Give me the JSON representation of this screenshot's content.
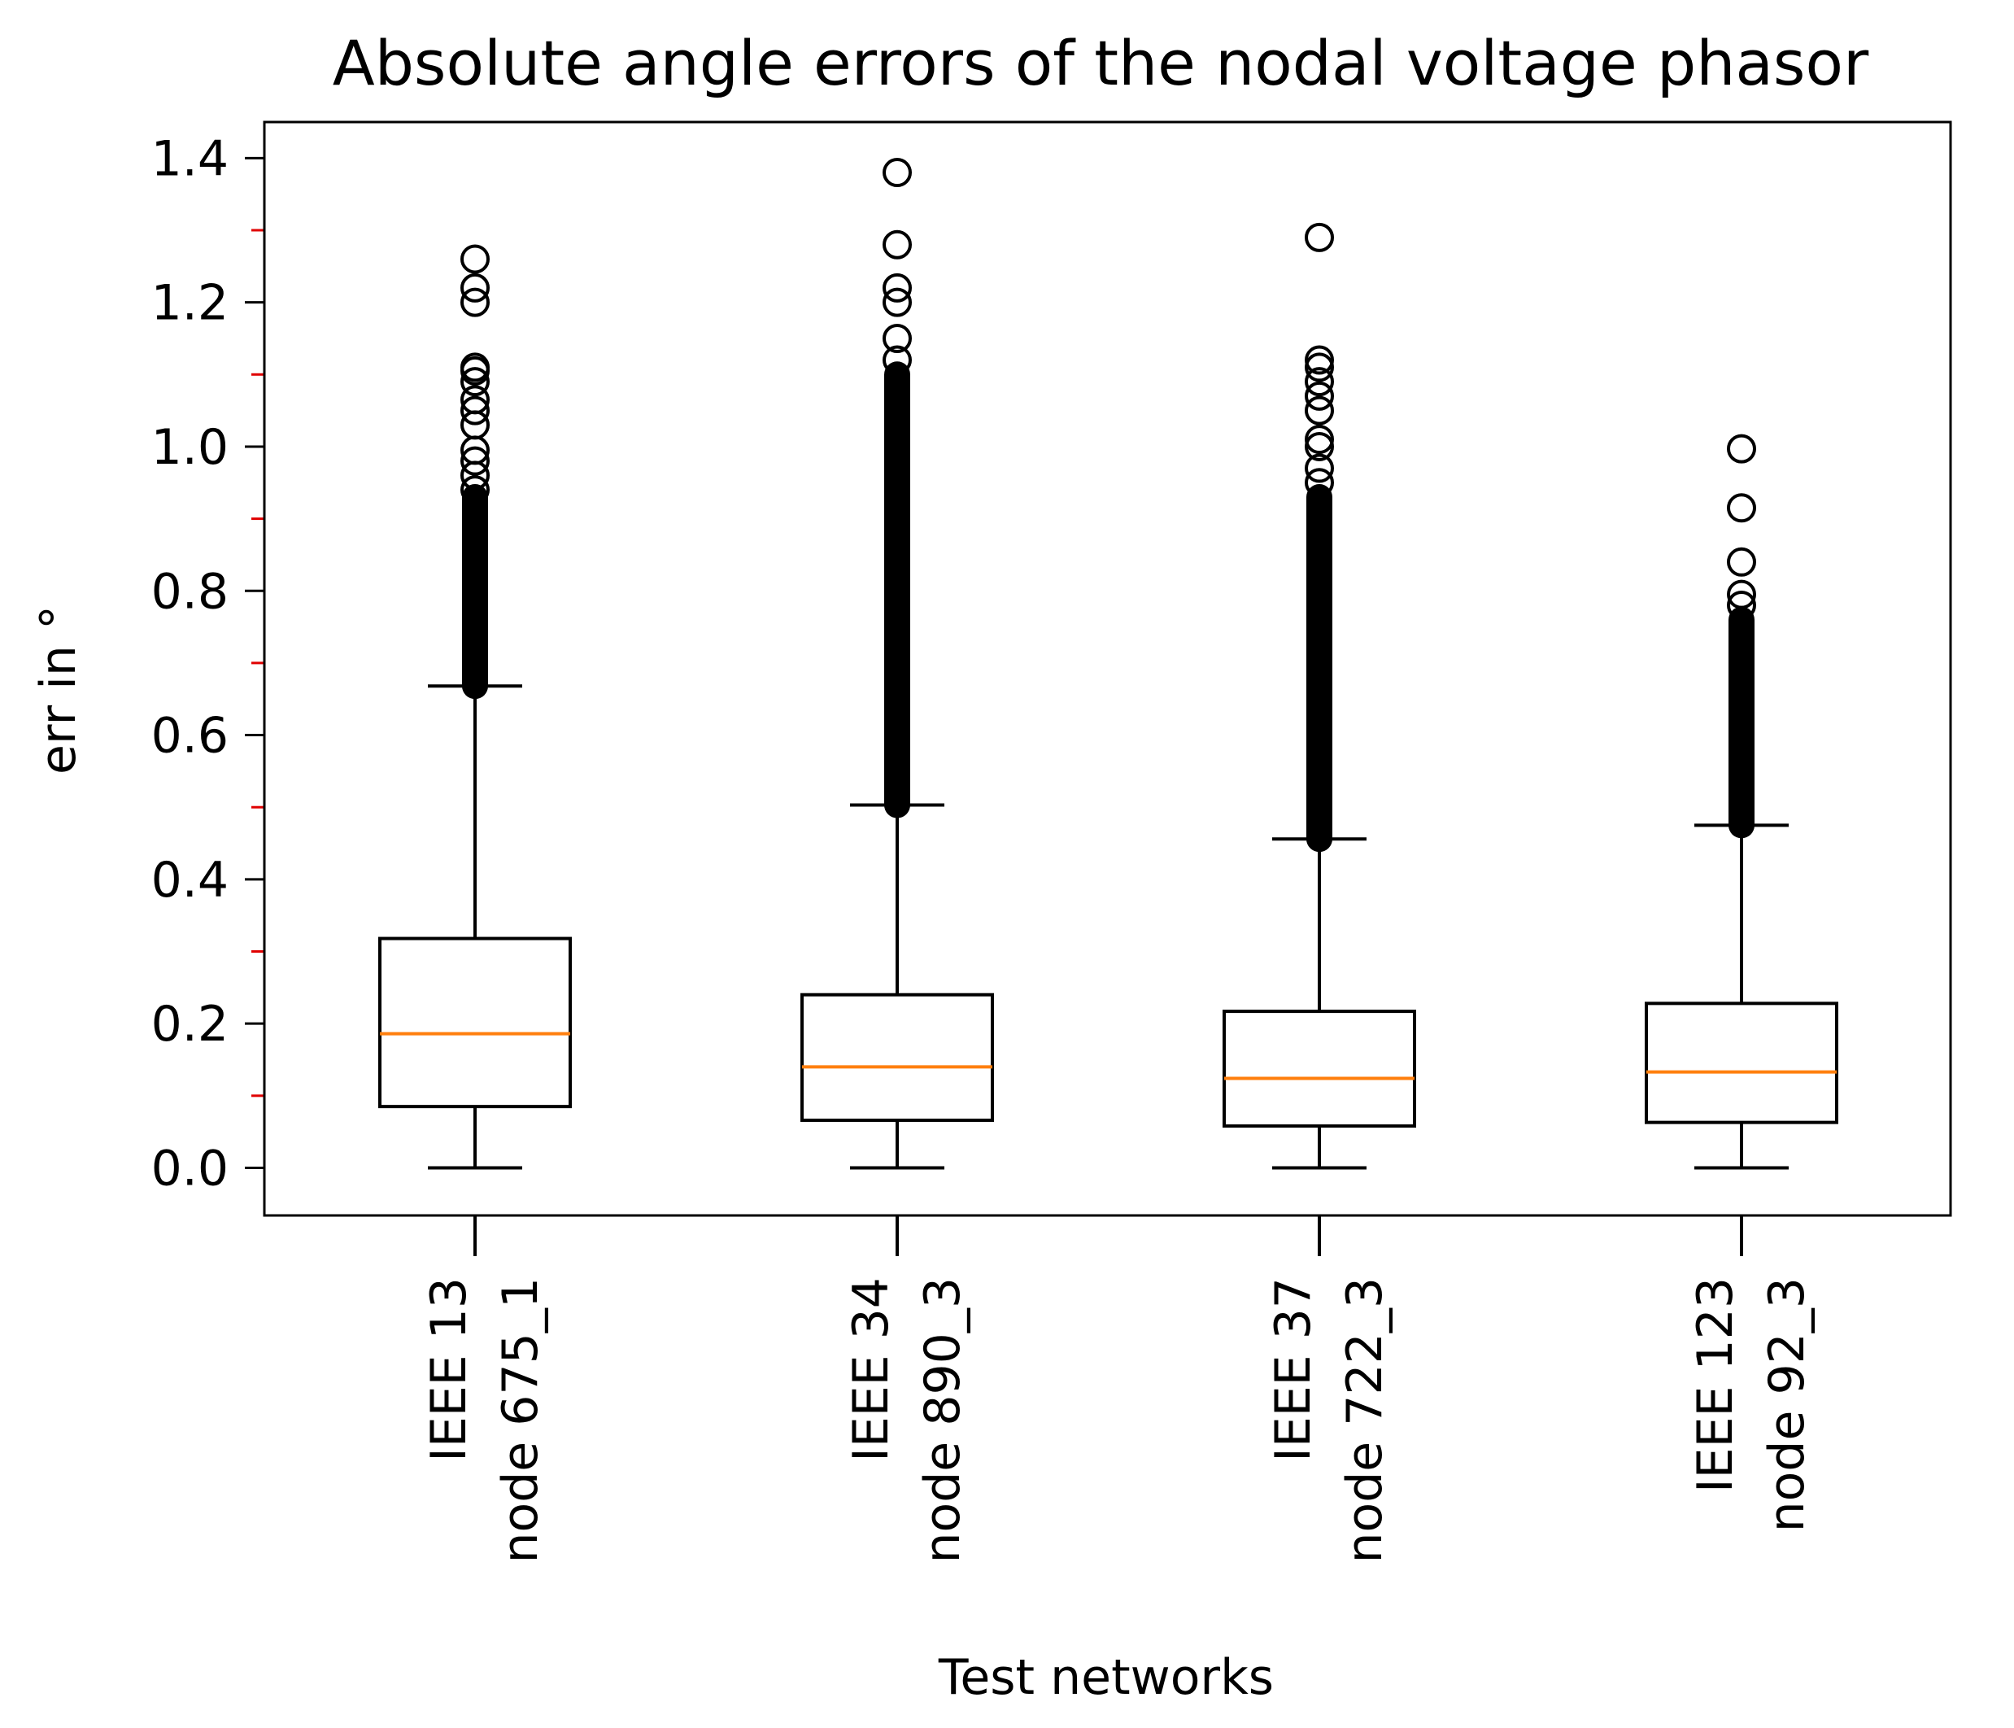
{
  "chart_data": {
    "type": "boxplot",
    "title": "Absolute angle errors of the nodal voltage phasor",
    "xlabel": "Test networks",
    "ylabel": "err in °",
    "ylim": [
      -0.066,
      1.45
    ],
    "yticks": [
      0.0,
      0.2,
      0.4,
      0.6,
      0.8,
      1.0,
      1.2,
      1.4
    ],
    "ytick_labels": [
      "0.0",
      "0.2",
      "0.4",
      "0.6",
      "0.8",
      "1.0",
      "1.2",
      "1.4"
    ],
    "minor_yticks": [
      0.1,
      0.3,
      0.5,
      0.7,
      0.9,
      1.1,
      1.3
    ],
    "grid": false,
    "categories": [
      {
        "line1": "IEEE 13",
        "line2": "node 675_1"
      },
      {
        "line1": "IEEE 34",
        "line2": "node 890_3"
      },
      {
        "line1": "IEEE 37",
        "line2": "node 722_3"
      },
      {
        "line1": "IEEE 123",
        "line2": "node 92_3"
      }
    ],
    "boxes": [
      {
        "whisker_low": 0.0,
        "q1": 0.085,
        "median": 0.186,
        "q3": 0.318,
        "whisker_high": 0.668,
        "flier_dense_range": [
          0.668,
          0.93
        ],
        "fliers": [
          0.94,
          0.96,
          0.98,
          0.995,
          1.03,
          1.05,
          1.065,
          1.09,
          1.105,
          1.11,
          1.2,
          1.22,
          1.26
        ]
      },
      {
        "whisker_low": 0.0,
        "q1": 0.066,
        "median": 0.14,
        "q3": 0.24,
        "whisker_high": 0.503,
        "flier_dense_range": [
          0.503,
          1.1
        ],
        "fliers": [
          1.12,
          1.15,
          1.2,
          1.22,
          1.28,
          1.38
        ]
      },
      {
        "whisker_low": 0.0,
        "q1": 0.058,
        "median": 0.124,
        "q3": 0.217,
        "whisker_high": 0.456,
        "flier_dense_range": [
          0.456,
          0.93
        ],
        "fliers": [
          0.95,
          0.97,
          1.0,
          1.01,
          1.05,
          1.07,
          1.09,
          1.11,
          1.12,
          1.29
        ]
      },
      {
        "whisker_low": 0.0,
        "q1": 0.063,
        "median": 0.133,
        "q3": 0.228,
        "whisker_high": 0.475,
        "flier_dense_range": [
          0.475,
          0.76
        ],
        "fliers": [
          0.78,
          0.795,
          0.84,
          0.915,
          0.997
        ]
      }
    ],
    "colors": {
      "box": "#000000",
      "median": "#ff7f0e",
      "minor_tick": "#e00000"
    }
  }
}
